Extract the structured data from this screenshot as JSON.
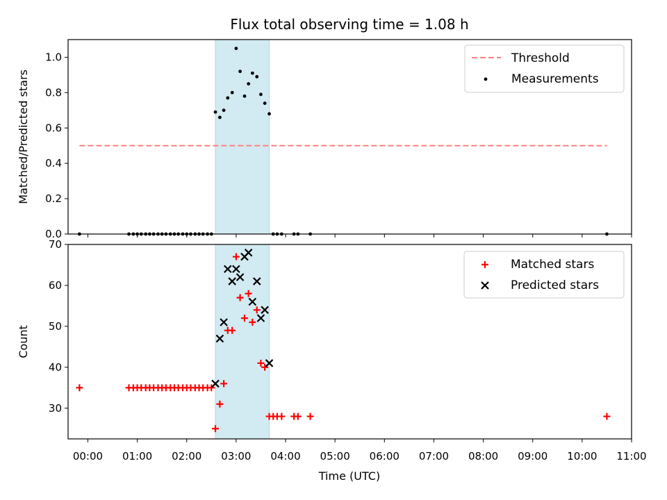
{
  "chart_data": {
    "type": "scatter",
    "title": "Flux total observing time = 1.08 h",
    "xlabel": "Time (UTC)",
    "x_unit": "hours since 00:00 UTC",
    "xlim": [
      -0.4,
      11.0
    ],
    "x_ticks": [
      0,
      1,
      2,
      3,
      4,
      5,
      6,
      7,
      8,
      9,
      10,
      11
    ],
    "x_tick_labels": [
      "00:00",
      "01:00",
      "02:00",
      "03:00",
      "04:00",
      "05:00",
      "06:00",
      "07:00",
      "08:00",
      "09:00",
      "10:00",
      "11:00"
    ],
    "highlight_span": {
      "x0": 2.58,
      "x1": 3.67,
      "color": "#add8e6"
    },
    "panels": [
      {
        "name": "ratio",
        "ylabel": "Matched/Predicted stars",
        "ylim": [
          0,
          1.1
        ],
        "y_ticks": [
          0,
          0.2,
          0.4,
          0.6,
          0.8,
          1.0
        ],
        "y_tick_labels": [
          "0.0",
          "0.2",
          "0.4",
          "0.6",
          "0.8",
          "1.0"
        ],
        "legend": [
          {
            "label": "Threshold",
            "marker": "dashed-line",
            "color": "#ff7f7f"
          },
          {
            "label": "Measurements",
            "marker": "dot",
            "color": "#000000"
          }
        ],
        "series": [
          {
            "name": "Threshold",
            "style": "dashed-line",
            "color": "#ff7f7f",
            "points": [
              [
                -0.17,
                0.5
              ],
              [
                10.5,
                0.5
              ]
            ]
          },
          {
            "name": "Measurements",
            "style": "dot",
            "color": "#000000",
            "points": [
              [
                -0.17,
                0
              ],
              [
                0.83,
                0
              ],
              [
                0.92,
                0
              ],
              [
                1.0,
                0
              ],
              [
                1.08,
                0
              ],
              [
                1.17,
                0
              ],
              [
                1.25,
                0
              ],
              [
                1.33,
                0
              ],
              [
                1.42,
                0
              ],
              [
                1.5,
                0
              ],
              [
                1.58,
                0
              ],
              [
                1.67,
                0
              ],
              [
                1.75,
                0
              ],
              [
                1.83,
                0
              ],
              [
                1.92,
                0
              ],
              [
                2.0,
                0
              ],
              [
                2.08,
                0
              ],
              [
                2.17,
                0
              ],
              [
                2.25,
                0
              ],
              [
                2.33,
                0
              ],
              [
                2.42,
                0
              ],
              [
                2.5,
                0
              ],
              [
                2.58,
                0.69
              ],
              [
                2.67,
                0.66
              ],
              [
                2.75,
                0.7
              ],
              [
                2.83,
                0.77
              ],
              [
                2.92,
                0.8
              ],
              [
                3.0,
                1.05
              ],
              [
                3.08,
                0.92
              ],
              [
                3.17,
                0.78
              ],
              [
                3.25,
                0.85
              ],
              [
                3.33,
                0.91
              ],
              [
                3.42,
                0.89
              ],
              [
                3.5,
                0.79
              ],
              [
                3.58,
                0.74
              ],
              [
                3.67,
                0.68
              ],
              [
                3.75,
                0
              ],
              [
                3.83,
                0
              ],
              [
                3.92,
                0
              ],
              [
                4.17,
                0
              ],
              [
                4.25,
                0
              ],
              [
                4.5,
                0
              ],
              [
                10.5,
                0
              ]
            ]
          }
        ]
      },
      {
        "name": "counts",
        "ylabel": "Count",
        "ylim": [
          22.5,
          70
        ],
        "y_ticks": [
          30,
          40,
          50,
          60,
          70
        ],
        "y_tick_labels": [
          "30",
          "40",
          "50",
          "60",
          "70"
        ],
        "legend": [
          {
            "label": "Matched stars",
            "marker": "plus",
            "color": "#ff0000"
          },
          {
            "label": "Predicted stars",
            "marker": "x",
            "color": "#000000"
          }
        ],
        "series": [
          {
            "name": "Matched stars",
            "style": "plus",
            "color": "#ff0000",
            "points": [
              [
                -0.17,
                35
              ],
              [
                0.83,
                35
              ],
              [
                0.92,
                35
              ],
              [
                1.0,
                35
              ],
              [
                1.08,
                35
              ],
              [
                1.17,
                35
              ],
              [
                1.25,
                35
              ],
              [
                1.33,
                35
              ],
              [
                1.42,
                35
              ],
              [
                1.5,
                35
              ],
              [
                1.58,
                35
              ],
              [
                1.67,
                35
              ],
              [
                1.75,
                35
              ],
              [
                1.83,
                35
              ],
              [
                1.92,
                35
              ],
              [
                2.0,
                35
              ],
              [
                2.08,
                35
              ],
              [
                2.17,
                35
              ],
              [
                2.25,
                35
              ],
              [
                2.33,
                35
              ],
              [
                2.42,
                35
              ],
              [
                2.5,
                35
              ],
              [
                2.58,
                25
              ],
              [
                2.67,
                31
              ],
              [
                2.75,
                36
              ],
              [
                2.83,
                49
              ],
              [
                2.92,
                49
              ],
              [
                3.0,
                67
              ],
              [
                3.08,
                57
              ],
              [
                3.17,
                52
              ],
              [
                3.25,
                58
              ],
              [
                3.33,
                51
              ],
              [
                3.42,
                54
              ],
              [
                3.5,
                41
              ],
              [
                3.58,
                40
              ],
              [
                3.67,
                28
              ],
              [
                3.75,
                28
              ],
              [
                3.83,
                28
              ],
              [
                3.92,
                28
              ],
              [
                4.17,
                28
              ],
              [
                4.25,
                28
              ],
              [
                4.5,
                28
              ],
              [
                10.5,
                28
              ]
            ]
          },
          {
            "name": "Predicted stars",
            "style": "x",
            "color": "#000000",
            "points": [
              [
                2.58,
                36
              ],
              [
                2.67,
                47
              ],
              [
                2.75,
                51
              ],
              [
                2.83,
                64
              ],
              [
                2.92,
                61
              ],
              [
                3.0,
                64
              ],
              [
                3.08,
                62
              ],
              [
                3.17,
                67
              ],
              [
                3.25,
                68
              ],
              [
                3.33,
                56
              ],
              [
                3.42,
                61
              ],
              [
                3.5,
                52
              ],
              [
                3.58,
                54
              ],
              [
                3.67,
                41
              ]
            ]
          }
        ]
      }
    ]
  }
}
